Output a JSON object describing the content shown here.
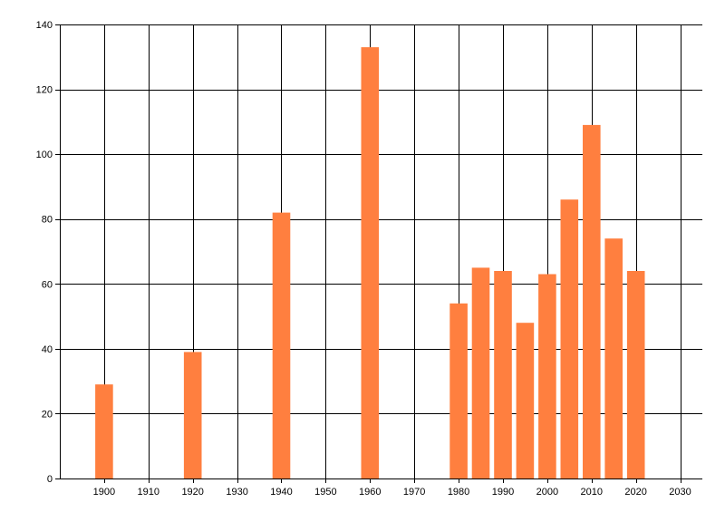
{
  "chart_data": {
    "type": "bar",
    "title": "",
    "xlabel": "",
    "ylabel": "",
    "x": [
      1900,
      1920,
      1940,
      1960,
      1980,
      1985,
      1990,
      1995,
      2000,
      2005,
      2010,
      2015,
      2020
    ],
    "values": [
      29,
      39,
      82,
      133,
      54,
      65,
      64,
      48,
      63,
      86,
      109,
      74,
      64
    ],
    "bar_width_years": 4,
    "xlim": [
      1890,
      2035
    ],
    "ylim": [
      0,
      140
    ],
    "x_ticks": [
      1900,
      1910,
      1920,
      1930,
      1940,
      1950,
      1960,
      1970,
      1980,
      1990,
      2000,
      2010,
      2020,
      2030
    ],
    "y_ticks": [
      0,
      20,
      40,
      60,
      80,
      100,
      120,
      140
    ],
    "x_tick_labels": [
      "1900",
      "1910",
      "1920",
      "1930",
      "1940",
      "1950",
      "1960",
      "1970",
      "1980",
      "1990",
      "2000",
      "2010",
      "2020",
      "2030"
    ],
    "y_tick_labels": [
      "0",
      "20",
      "40",
      "60",
      "80",
      "100",
      "120",
      "140"
    ],
    "grid": true,
    "legend": "none",
    "colors": {
      "bar": "#ff7f3f",
      "grid": "#000000",
      "background": "#ffffff"
    }
  }
}
